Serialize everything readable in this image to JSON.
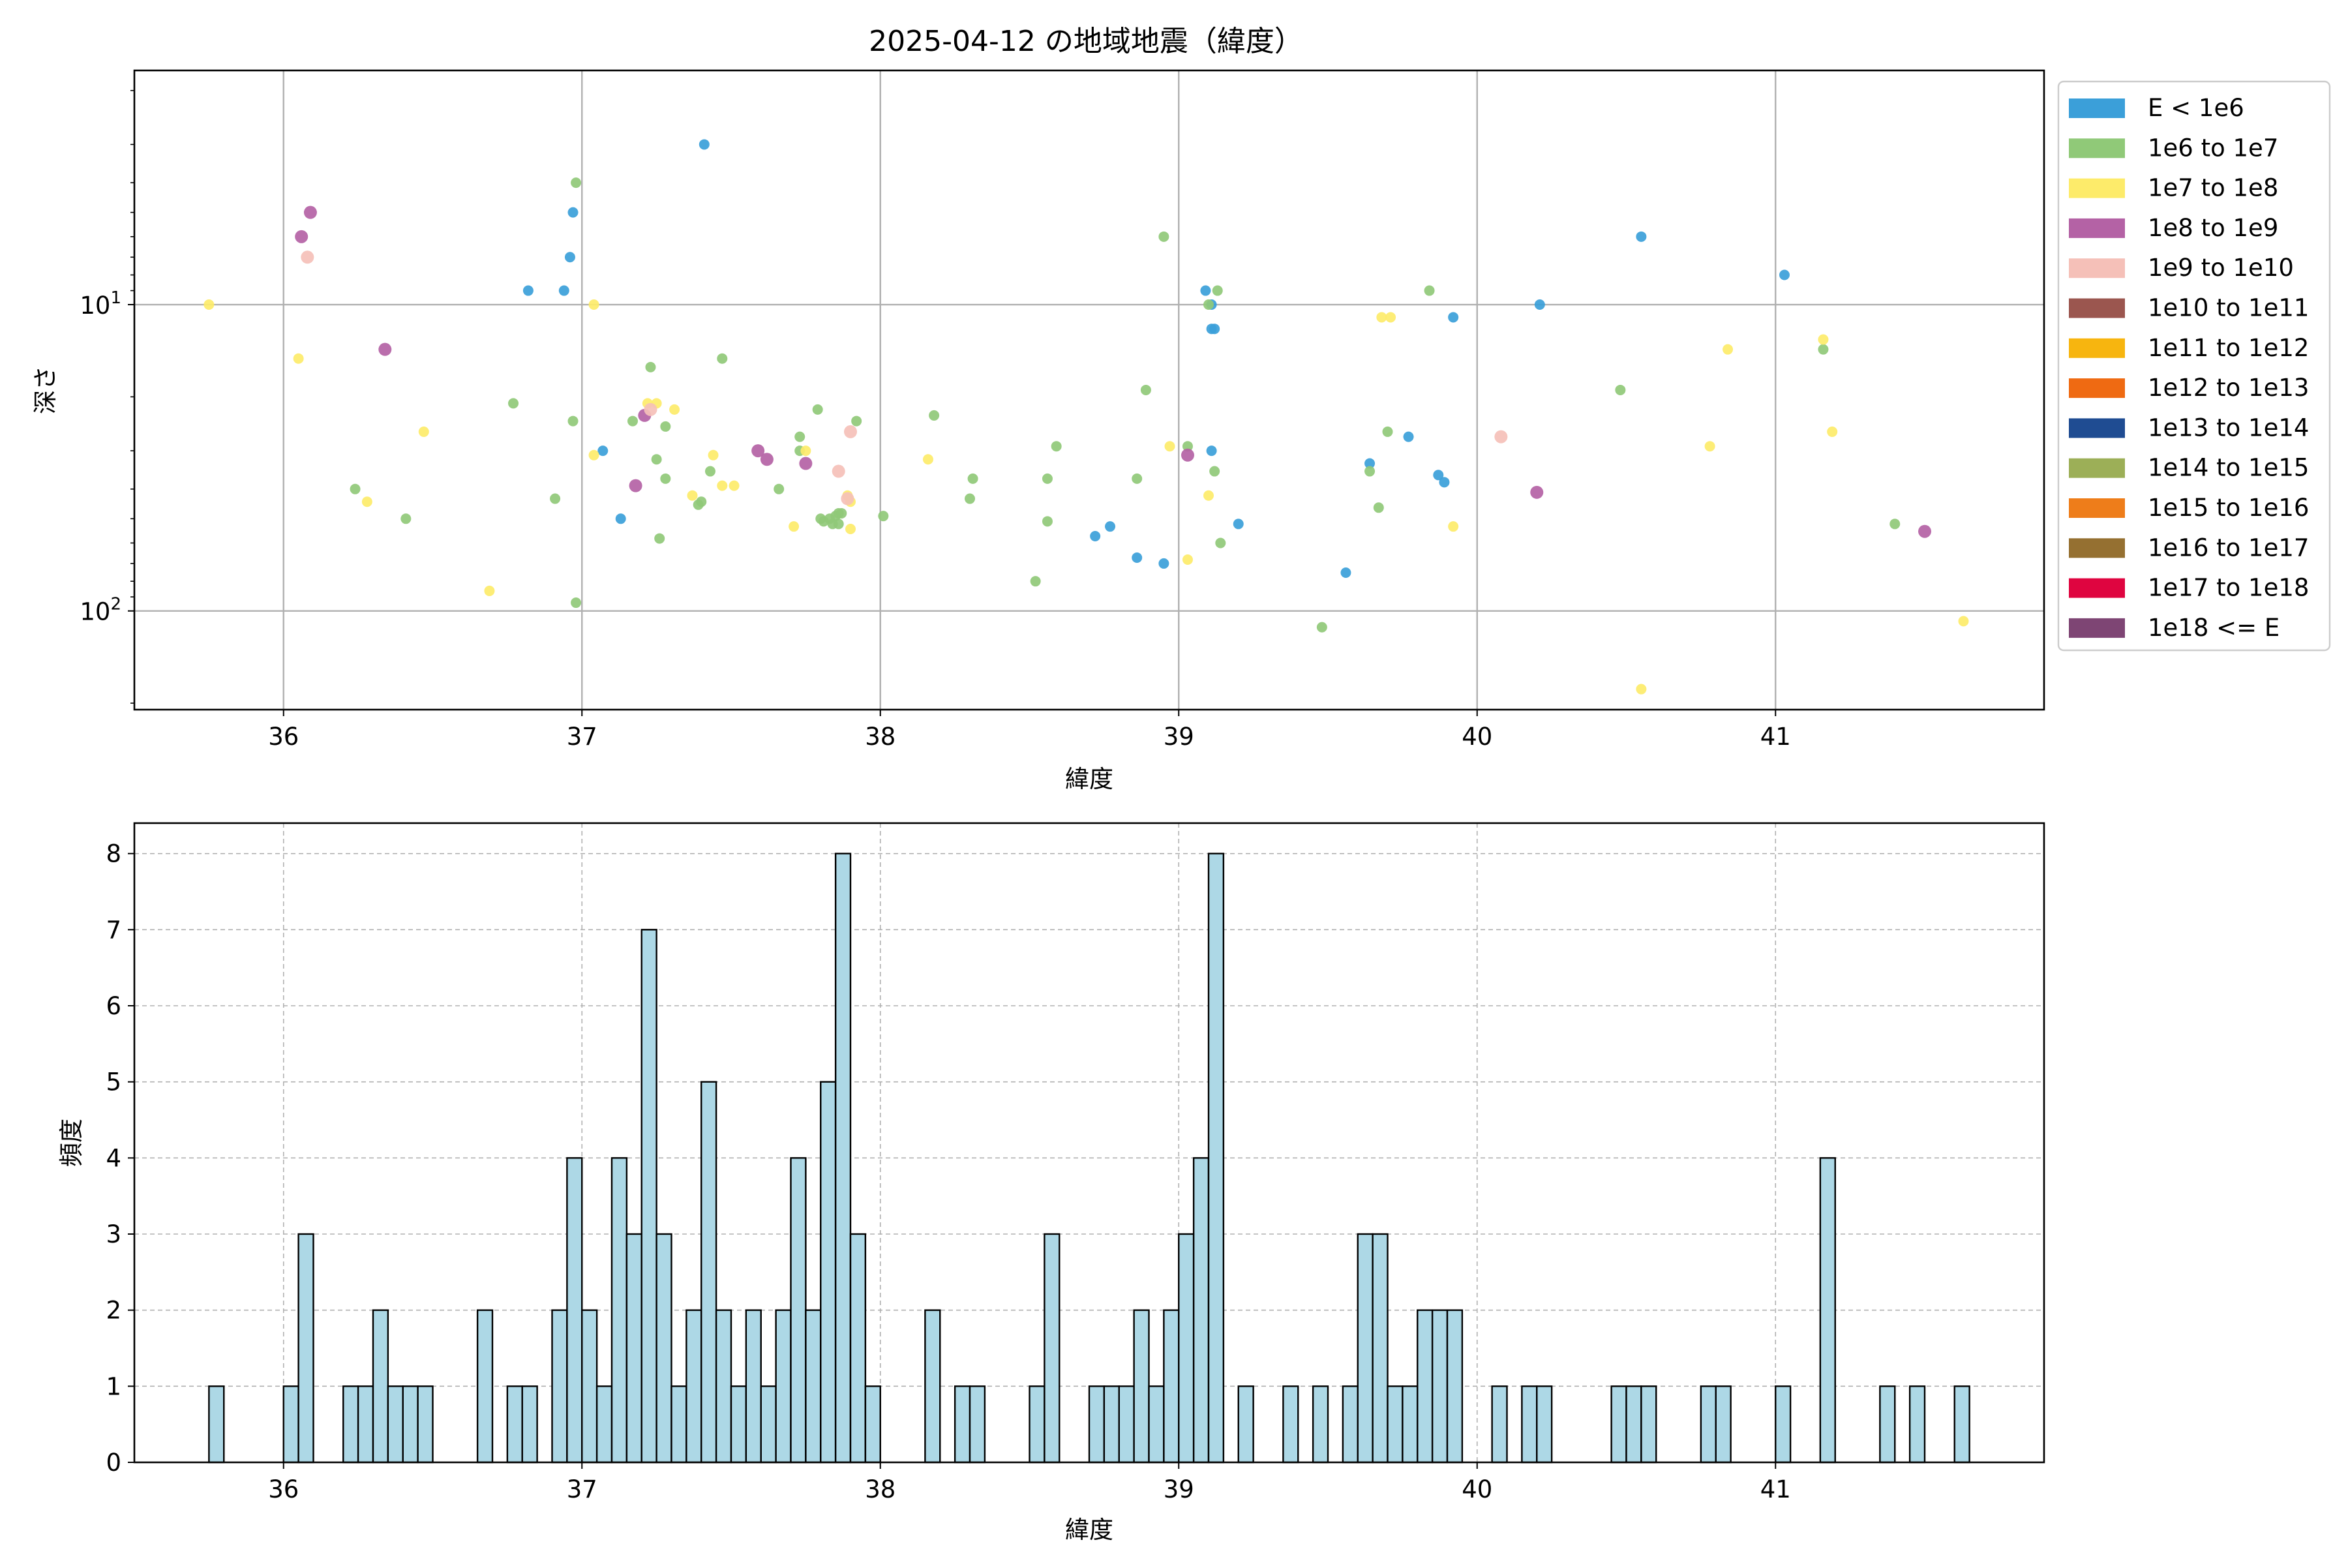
{
  "figure": {
    "top_title": "2025-04-12 の地域地震（緯度）"
  },
  "chart_data": [
    {
      "type": "scatter",
      "title": "2025-04-12 の地域地震（緯度）",
      "xlabel": "緯度",
      "ylabel": "深さ",
      "xlim": [
        35.5,
        41.9
      ],
      "ylim": [
        210,
        1.72
      ],
      "y_scale": "log",
      "y_inverted": true,
      "x_ticks": [
        "36",
        "37",
        "38",
        "39",
        "40",
        "41"
      ],
      "y_ticks": [
        "10^1",
        "10^2"
      ],
      "grid": true,
      "legend_position": "outside-right",
      "legend": [
        {
          "name": "E < 1e6",
          "color": "#3b9fd9"
        },
        {
          "name": "1e6 to 1e7",
          "color": "#90c978"
        },
        {
          "name": "1e7 to 1e8",
          "color": "#fdeb6a"
        },
        {
          "name": "1e8 to 1e9",
          "color": "#b462a5"
        },
        {
          "name": "1e9 to 1e10",
          "color": "#f5c0b8"
        },
        {
          "name": "1e10 to 1e11",
          "color": "#9b564f"
        },
        {
          "name": "1e11 to 1e12",
          "color": "#f7b50f"
        },
        {
          "name": "1e12 to 1e13",
          "color": "#ef6a12"
        },
        {
          "name": "1e13 to 1e14",
          "color": "#1f4c92"
        },
        {
          "name": "1e14 to 1e15",
          "color": "#9caf57"
        },
        {
          "name": "1e15 to 1e16",
          "color": "#ee7d1a"
        },
        {
          "name": "1e16 to 1e17",
          "color": "#957031"
        },
        {
          "name": "1e17 to 1e18",
          "color": "#df0540"
        },
        {
          "name": "1e18 <= E",
          "color": "#7e4574"
        }
      ],
      "series": [
        {
          "name": "E < 1e6",
          "points": [
            [
              37.41,
              3.0
            ],
            [
              36.97,
              5.0
            ],
            [
              36.96,
              7.0
            ],
            [
              36.82,
              9.0
            ],
            [
              36.94,
              9.0
            ],
            [
              39.09,
              9.0
            ],
            [
              39.11,
              10.0
            ],
            [
              39.11,
              12.0
            ],
            [
              39.12,
              12.0
            ],
            [
              40.55,
              6.0
            ],
            [
              41.03,
              8.0
            ],
            [
              39.92,
              11.0
            ],
            [
              40.21,
              10.0
            ],
            [
              37.07,
              30.0
            ],
            [
              37.13,
              50.0
            ],
            [
              39.11,
              30.0
            ],
            [
              39.64,
              33.0
            ],
            [
              39.77,
              27.0
            ],
            [
              39.87,
              36.0
            ],
            [
              39.89,
              38.0
            ],
            [
              38.72,
              57.0
            ],
            [
              38.77,
              53.0
            ],
            [
              38.86,
              67.0
            ],
            [
              38.95,
              70.0
            ],
            [
              39.2,
              52.0
            ],
            [
              39.56,
              75.0
            ]
          ]
        },
        {
          "name": "1e6 to 1e7",
          "points": [
            [
              36.98,
              4.0
            ],
            [
              36.97,
              24.0
            ],
            [
              39.13,
              9.0
            ],
            [
              38.95,
              6.0
            ],
            [
              39.84,
              9.0
            ],
            [
              39.1,
              10.0
            ],
            [
              36.77,
              21.0
            ],
            [
              37.23,
              16.0
            ],
            [
              37.47,
              15.0
            ],
            [
              37.17,
              24.0
            ],
            [
              37.25,
              32.0
            ],
            [
              37.28,
              25.0
            ],
            [
              37.28,
              37.0
            ],
            [
              37.43,
              35.0
            ],
            [
              37.39,
              45.0
            ],
            [
              37.4,
              44.0
            ],
            [
              37.26,
              58.0
            ],
            [
              36.24,
              40.0
            ],
            [
              36.41,
              50.0
            ],
            [
              36.91,
              43.0
            ],
            [
              36.98,
              94.0
            ],
            [
              37.66,
              40.0
            ],
            [
              37.73,
              27.0
            ],
            [
              37.73,
              30.0
            ],
            [
              37.79,
              22.0
            ],
            [
              37.81,
              51.0
            ],
            [
              37.85,
              49.0
            ],
            [
              37.86,
              48.0
            ],
            [
              37.87,
              48.0
            ],
            [
              37.92,
              24.0
            ],
            [
              38.01,
              49.0
            ],
            [
              38.18,
              23.0
            ],
            [
              38.31,
              37.0
            ],
            [
              38.3,
              43.0
            ],
            [
              38.56,
              37.0
            ],
            [
              38.56,
              51.0
            ],
            [
              38.59,
              29.0
            ],
            [
              38.52,
              80.0
            ],
            [
              38.86,
              37.0
            ],
            [
              38.89,
              19.0
            ],
            [
              39.03,
              29.0
            ],
            [
              39.12,
              35.0
            ],
            [
              39.14,
              60.0
            ],
            [
              39.48,
              113.0
            ],
            [
              39.64,
              35.0
            ],
            [
              39.67,
              46.0
            ],
            [
              39.7,
              26.0
            ],
            [
              40.48,
              19.0
            ],
            [
              41.16,
              14.0
            ],
            [
              41.4,
              52.0
            ],
            [
              37.8,
              50.0
            ],
            [
              37.83,
              50.0
            ],
            [
              37.86,
              52.0
            ],
            [
              37.84,
              52.0
            ]
          ]
        },
        {
          "name": "1e7 to 1e8",
          "points": [
            [
              35.75,
              10.0
            ],
            [
              36.05,
              15.0
            ],
            [
              36.28,
              44.0
            ],
            [
              36.47,
              26.0
            ],
            [
              36.69,
              86.0
            ],
            [
              37.04,
              10.0
            ],
            [
              37.04,
              31.0
            ],
            [
              37.22,
              21.0
            ],
            [
              37.25,
              21.0
            ],
            [
              37.31,
              22.0
            ],
            [
              37.37,
              42.0
            ],
            [
              37.44,
              31.0
            ],
            [
              37.47,
              39.0
            ],
            [
              37.51,
              39.0
            ],
            [
              37.71,
              53.0
            ],
            [
              37.75,
              30.0
            ],
            [
              37.89,
              42.0
            ],
            [
              37.9,
              44.0
            ],
            [
              37.9,
              54.0
            ],
            [
              38.16,
              32.0
            ],
            [
              38.97,
              29.0
            ],
            [
              39.03,
              68.0
            ],
            [
              39.1,
              42.0
            ],
            [
              39.68,
              11.0
            ],
            [
              39.71,
              11.0
            ],
            [
              39.92,
              53.0
            ],
            [
              40.78,
              29.0
            ],
            [
              40.84,
              14.0
            ],
            [
              41.16,
              13.0
            ],
            [
              41.19,
              26.0
            ],
            [
              41.63,
              108.0
            ],
            [
              40.55,
              180.0
            ]
          ]
        },
        {
          "name": "1e8 to 1e9",
          "points": [
            [
              36.06,
              6.0
            ],
            [
              36.09,
              5.0
            ],
            [
              36.34,
              14.0
            ],
            [
              37.18,
              39.0
            ],
            [
              37.21,
              23.0
            ],
            [
              37.59,
              30.0
            ],
            [
              37.62,
              32.0
            ],
            [
              37.75,
              33.0
            ],
            [
              39.03,
              31.0
            ],
            [
              40.2,
              41.0
            ],
            [
              41.5,
              55.0
            ]
          ]
        },
        {
          "name": "1e9 to 1e10",
          "points": [
            [
              36.08,
              7.0
            ],
            [
              37.23,
              22.0
            ],
            [
              37.86,
              35.0
            ],
            [
              37.9,
              26.0
            ],
            [
              40.08,
              27.0
            ],
            [
              37.89,
              43.0
            ]
          ]
        }
      ]
    },
    {
      "type": "bar",
      "title": "",
      "xlabel": "緯度",
      "ylabel": "頻度",
      "xlim": [
        35.5,
        41.9
      ],
      "ylim": [
        0,
        8.4
      ],
      "x_ticks": [
        "36",
        "37",
        "38",
        "39",
        "40",
        "41"
      ],
      "y_ticks": [
        "0",
        "1",
        "2",
        "3",
        "4",
        "5",
        "6",
        "7",
        "8"
      ],
      "grid": true,
      "bar_color": "#add8e6",
      "bin_width": 0.05,
      "bins": [
        [
          35.75,
          1
        ],
        [
          36.0,
          1
        ],
        [
          36.05,
          3
        ],
        [
          36.2,
          1
        ],
        [
          36.25,
          1
        ],
        [
          36.3,
          2
        ],
        [
          36.35,
          1
        ],
        [
          36.4,
          1
        ],
        [
          36.45,
          1
        ],
        [
          36.65,
          2
        ],
        [
          36.75,
          1
        ],
        [
          36.8,
          1
        ],
        [
          36.9,
          2
        ],
        [
          36.95,
          4
        ],
        [
          37.0,
          2
        ],
        [
          37.05,
          1
        ],
        [
          37.1,
          4
        ],
        [
          37.15,
          3
        ],
        [
          37.2,
          7
        ],
        [
          37.25,
          3
        ],
        [
          37.3,
          1
        ],
        [
          37.35,
          2
        ],
        [
          37.4,
          5
        ],
        [
          37.45,
          2
        ],
        [
          37.5,
          1
        ],
        [
          37.55,
          2
        ],
        [
          37.6,
          1
        ],
        [
          37.65,
          2
        ],
        [
          37.7,
          4
        ],
        [
          37.75,
          2
        ],
        [
          37.8,
          5
        ],
        [
          37.85,
          8
        ],
        [
          37.9,
          3
        ],
        [
          37.95,
          1
        ],
        [
          38.15,
          2
        ],
        [
          38.25,
          1
        ],
        [
          38.3,
          1
        ],
        [
          38.5,
          1
        ],
        [
          38.55,
          3
        ],
        [
          38.7,
          1
        ],
        [
          38.75,
          1
        ],
        [
          38.8,
          1
        ],
        [
          38.85,
          2
        ],
        [
          38.9,
          1
        ],
        [
          38.95,
          2
        ],
        [
          39.0,
          3
        ],
        [
          39.05,
          4
        ],
        [
          39.1,
          8
        ],
        [
          39.2,
          1
        ],
        [
          39.35,
          1
        ],
        [
          39.45,
          1
        ],
        [
          39.55,
          1
        ],
        [
          39.6,
          3
        ],
        [
          39.65,
          3
        ],
        [
          39.7,
          1
        ],
        [
          39.75,
          1
        ],
        [
          39.8,
          2
        ],
        [
          39.85,
          2
        ],
        [
          39.9,
          2
        ],
        [
          40.05,
          1
        ],
        [
          40.15,
          1
        ],
        [
          40.2,
          1
        ],
        [
          40.45,
          1
        ],
        [
          40.5,
          1
        ],
        [
          40.55,
          1
        ],
        [
          40.75,
          1
        ],
        [
          40.8,
          1
        ],
        [
          41.0,
          1
        ],
        [
          41.15,
          4
        ],
        [
          41.35,
          1
        ],
        [
          41.45,
          1
        ],
        [
          41.6,
          1
        ]
      ]
    }
  ]
}
